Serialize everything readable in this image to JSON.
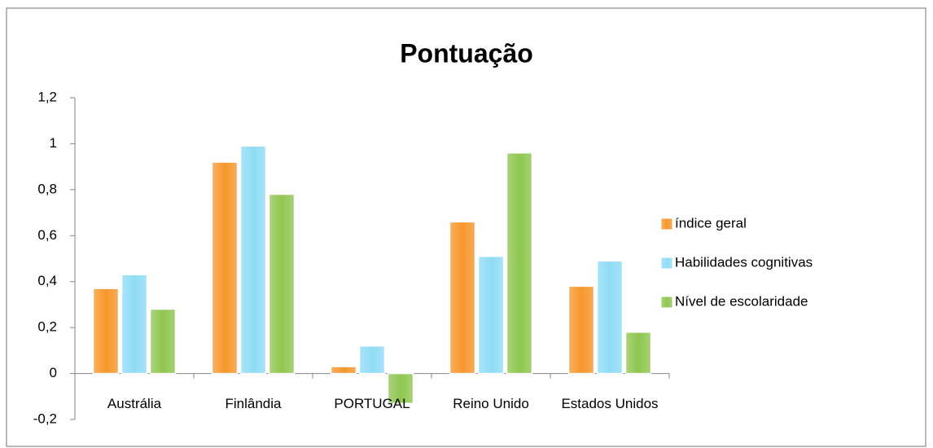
{
  "chart_data": {
    "type": "bar",
    "title": "Pontuação",
    "categories": [
      "Austrália",
      "Finlândia",
      "PORTUGAL",
      "Reino Unido",
      "Estados Unidos"
    ],
    "series": [
      {
        "name": "índice geral",
        "color": "#f7962b",
        "values": [
          0.37,
          0.92,
          0.03,
          0.66,
          0.38
        ]
      },
      {
        "name": "Habilidades cognitivas",
        "color": "#8fdcf6",
        "values": [
          0.43,
          0.99,
          0.12,
          0.51,
          0.49
        ]
      },
      {
        "name": "Nível de escolaridade",
        "color": "#8fc650",
        "values": [
          0.28,
          0.78,
          -0.13,
          0.96,
          0.18
        ]
      }
    ],
    "ylim": [
      -0.2,
      1.2
    ],
    "yticks": [
      {
        "value": -0.2,
        "label": "-0,2"
      },
      0,
      {
        "value": 0.2,
        "label": "0,2"
      },
      {
        "value": 0.4,
        "label": "0,4"
      },
      {
        "value": 0.6,
        "label": "0,6"
      },
      {
        "value": 0.8,
        "label": "0,8"
      },
      1,
      {
        "value": 1.2,
        "label": "1,2"
      }
    ],
    "legend": "right"
  }
}
